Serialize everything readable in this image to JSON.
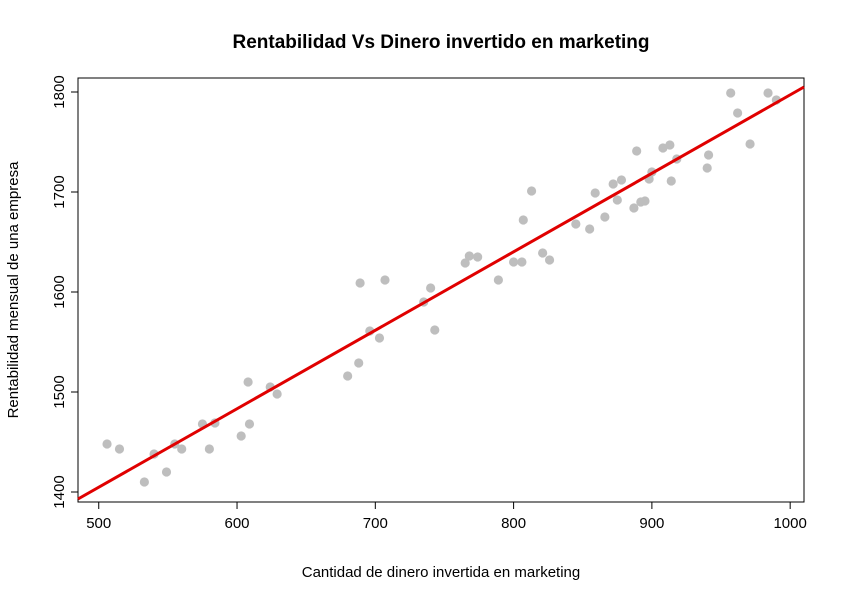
{
  "chart_data": {
    "type": "scatter",
    "title": "Rentabilidad Vs Dinero invertido en marketing",
    "xlabel": "Cantidad de dinero invertida en marketing",
    "ylabel": "Rentabilidad mensual de una empresa",
    "xlim": [
      485,
      1010
    ],
    "ylim": [
      1390,
      1814
    ],
    "xticks": [
      500,
      600,
      700,
      800,
      900,
      1000
    ],
    "yticks": [
      1400,
      1500,
      1600,
      1700,
      1800
    ],
    "point_color": "#BEBEBE",
    "line_color": "#E00000",
    "grid": false,
    "regression_line": {
      "x": [
        485,
        1010
      ],
      "y": [
        1393,
        1805
      ]
    },
    "points": {
      "x": [
        506,
        515,
        533,
        540,
        549,
        555,
        560,
        575,
        580,
        584,
        603,
        608,
        609,
        624,
        629,
        680,
        688,
        689,
        696,
        703,
        707,
        735,
        740,
        743,
        765,
        768,
        774,
        789,
        800,
        806,
        807,
        813,
        821,
        826,
        845,
        855,
        859,
        866,
        872,
        875,
        878,
        887,
        889,
        892,
        895,
        898,
        900,
        908,
        913,
        914,
        918,
        940,
        941,
        957,
        962,
        971,
        984,
        990
      ],
      "y": [
        1448,
        1443,
        1410,
        1438,
        1420,
        1448,
        1443,
        1468,
        1443,
        1469,
        1456,
        1510,
        1468,
        1505,
        1498,
        1516,
        1529,
        1609,
        1561,
        1554,
        1612,
        1590,
        1604,
        1562,
        1629,
        1636,
        1635,
        1612,
        1630,
        1630,
        1672,
        1701,
        1639,
        1632,
        1668,
        1663,
        1699,
        1675,
        1708,
        1692,
        1712,
        1684,
        1741,
        1690,
        1691,
        1713,
        1720,
        1744,
        1747,
        1711,
        1733,
        1724,
        1737,
        1799,
        1779,
        1748,
        1799,
        1792
      ]
    }
  }
}
